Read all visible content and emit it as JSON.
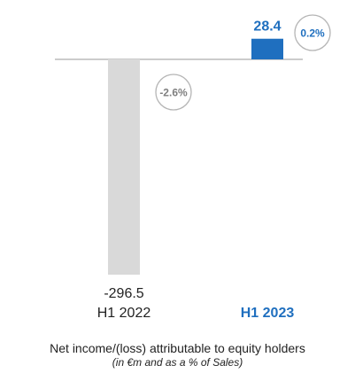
{
  "chart_data": {
    "type": "bar",
    "categories": [
      "H1 2022",
      "H1 2023"
    ],
    "values": [
      -296.5,
      28.4
    ],
    "value_labels": [
      "-296.5",
      "28.4"
    ],
    "pct_of_sales": [
      "-2.6%",
      "0.2%"
    ],
    "highlight_index": 1,
    "title": "Net income/(loss) attributable to equity holders",
    "subtitle": "(in €m and as a % of Sales)",
    "colors": {
      "bar_prior": "#d9d9d9",
      "bar_current": "#1f6fbf",
      "label_current": "#1f6fbf",
      "label_prior": "#222222",
      "baseline": "#999999",
      "circle_stroke": "#b5b5b5",
      "circle_text_prior": "#7f7f7f",
      "circle_text_current": "#1f6fbf"
    }
  }
}
